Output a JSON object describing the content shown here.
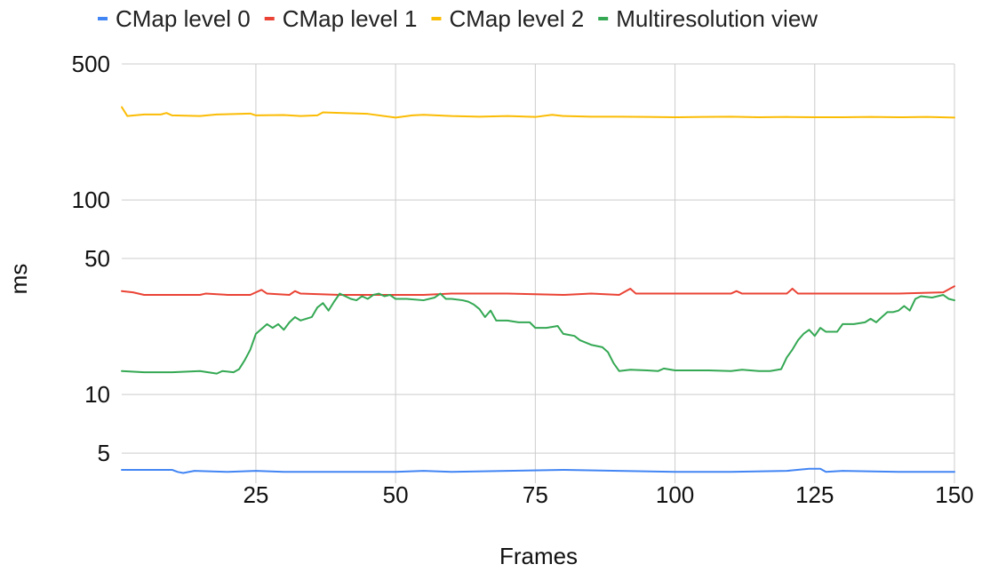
{
  "chart_data": {
    "type": "line",
    "title": "",
    "xlabel": "Frames",
    "ylabel": "ms",
    "x_range": [
      1,
      150
    ],
    "x_ticks": [
      25,
      50,
      75,
      100,
      125,
      150
    ],
    "x_tick_labels": [
      "25",
      "50",
      "75",
      "100",
      "125",
      "150"
    ],
    "y_scale": "log",
    "y_range": [
      3.5,
      500
    ],
    "y_ticks": [
      5,
      10,
      50,
      100,
      500
    ],
    "y_tick_labels": [
      "5",
      "10",
      "50",
      "100",
      "500"
    ],
    "grid": true,
    "legend_position": "top",
    "series": [
      {
        "name": "CMap level 0",
        "color": "#4285f4",
        "points": [
          [
            1,
            4.1
          ],
          [
            5,
            4.1
          ],
          [
            10,
            4.1
          ],
          [
            11,
            4.0
          ],
          [
            12,
            3.95
          ],
          [
            14,
            4.05
          ],
          [
            20,
            4.0
          ],
          [
            25,
            4.05
          ],
          [
            30,
            4.0
          ],
          [
            40,
            4.0
          ],
          [
            50,
            4.0
          ],
          [
            55,
            4.05
          ],
          [
            60,
            4.0
          ],
          [
            70,
            4.05
          ],
          [
            80,
            4.1
          ],
          [
            90,
            4.05
          ],
          [
            100,
            4.0
          ],
          [
            110,
            4.0
          ],
          [
            120,
            4.05
          ],
          [
            124,
            4.15
          ],
          [
            126,
            4.15
          ],
          [
            127,
            4.0
          ],
          [
            130,
            4.05
          ],
          [
            140,
            4.0
          ],
          [
            150,
            4.0
          ]
        ]
      },
      {
        "name": "CMap level 1",
        "color": "#ea4335",
        "points": [
          [
            1,
            34
          ],
          [
            3,
            33.5
          ],
          [
            5,
            32.5
          ],
          [
            10,
            32.5
          ],
          [
            15,
            32.5
          ],
          [
            16,
            33
          ],
          [
            20,
            32.5
          ],
          [
            24,
            32.5
          ],
          [
            25,
            33.5
          ],
          [
            26,
            34.5
          ],
          [
            27,
            33
          ],
          [
            31,
            32.5
          ],
          [
            32,
            34
          ],
          [
            33,
            33
          ],
          [
            40,
            32.5
          ],
          [
            50,
            32.5
          ],
          [
            55,
            32.5
          ],
          [
            60,
            33
          ],
          [
            70,
            33
          ],
          [
            80,
            32.5
          ],
          [
            85,
            33
          ],
          [
            90,
            32.5
          ],
          [
            92,
            35
          ],
          [
            93,
            33
          ],
          [
            100,
            33
          ],
          [
            110,
            33
          ],
          [
            111,
            34
          ],
          [
            112,
            33
          ],
          [
            120,
            33
          ],
          [
            121,
            35
          ],
          [
            122,
            33
          ],
          [
            130,
            33
          ],
          [
            140,
            33
          ],
          [
            148,
            33.5
          ],
          [
            150,
            36
          ]
        ]
      },
      {
        "name": "CMap level 2",
        "color": "#fbbc04",
        "points": [
          [
            1,
            300
          ],
          [
            2,
            270
          ],
          [
            5,
            275
          ],
          [
            8,
            275
          ],
          [
            9,
            280
          ],
          [
            10,
            272
          ],
          [
            15,
            270
          ],
          [
            18,
            275
          ],
          [
            24,
            278
          ],
          [
            25,
            272
          ],
          [
            30,
            273
          ],
          [
            33,
            270
          ],
          [
            36,
            272
          ],
          [
            37,
            282
          ],
          [
            40,
            280
          ],
          [
            45,
            277
          ],
          [
            50,
            265
          ],
          [
            53,
            272
          ],
          [
            55,
            274
          ],
          [
            60,
            270
          ],
          [
            65,
            268
          ],
          [
            70,
            270
          ],
          [
            75,
            267
          ],
          [
            78,
            274
          ],
          [
            80,
            270
          ],
          [
            85,
            268
          ],
          [
            90,
            268
          ],
          [
            95,
            267
          ],
          [
            100,
            266
          ],
          [
            105,
            267
          ],
          [
            110,
            268
          ],
          [
            115,
            266
          ],
          [
            120,
            267
          ],
          [
            125,
            266
          ],
          [
            130,
            266
          ],
          [
            135,
            267
          ],
          [
            140,
            266
          ],
          [
            145,
            267
          ],
          [
            150,
            265
          ]
        ]
      },
      {
        "name": "Multiresolution view",
        "color": "#34a853",
        "points": [
          [
            1,
            13.2
          ],
          [
            5,
            13
          ],
          [
            8,
            13
          ],
          [
            10,
            13
          ],
          [
            15,
            13.2
          ],
          [
            18,
            12.8
          ],
          [
            19,
            13.2
          ],
          [
            21,
            13
          ],
          [
            22,
            13.5
          ],
          [
            23,
            15
          ],
          [
            24,
            17
          ],
          [
            25,
            20.5
          ],
          [
            27,
            23
          ],
          [
            28,
            22
          ],
          [
            29,
            23
          ],
          [
            30,
            21.5
          ],
          [
            31,
            23.5
          ],
          [
            32,
            25
          ],
          [
            33,
            24
          ],
          [
            35,
            25
          ],
          [
            36,
            28
          ],
          [
            37,
            29.5
          ],
          [
            38,
            27
          ],
          [
            39,
            30
          ],
          [
            40,
            33
          ],
          [
            41,
            32
          ],
          [
            42,
            31
          ],
          [
            43,
            30.5
          ],
          [
            44,
            32
          ],
          [
            45,
            31
          ],
          [
            46,
            32.5
          ],
          [
            47,
            33
          ],
          [
            48,
            32
          ],
          [
            49,
            32.5
          ],
          [
            50,
            31
          ],
          [
            52,
            31
          ],
          [
            55,
            30.5
          ],
          [
            57,
            31.5
          ],
          [
            58,
            33
          ],
          [
            59,
            31
          ],
          [
            60,
            31
          ],
          [
            62,
            30.5
          ],
          [
            63,
            30
          ],
          [
            64,
            29
          ],
          [
            65,
            27.5
          ],
          [
            66,
            25
          ],
          [
            67,
            27
          ],
          [
            68,
            24
          ],
          [
            70,
            24
          ],
          [
            72,
            23.5
          ],
          [
            74,
            23.5
          ],
          [
            75,
            22
          ],
          [
            77,
            22
          ],
          [
            79,
            22.5
          ],
          [
            80,
            20.5
          ],
          [
            82,
            20
          ],
          [
            83,
            19
          ],
          [
            85,
            18
          ],
          [
            87,
            17.5
          ],
          [
            88,
            16.5
          ],
          [
            89,
            14.5
          ],
          [
            90,
            13.2
          ],
          [
            92,
            13.4
          ],
          [
            95,
            13.3
          ],
          [
            97,
            13.2
          ],
          [
            98,
            13.6
          ],
          [
            100,
            13.3
          ],
          [
            103,
            13.3
          ],
          [
            106,
            13.3
          ],
          [
            110,
            13.2
          ],
          [
            112,
            13.4
          ],
          [
            115,
            13.2
          ],
          [
            117,
            13.2
          ],
          [
            119,
            13.5
          ],
          [
            120,
            15.5
          ],
          [
            121,
            17
          ],
          [
            122,
            19
          ],
          [
            123,
            20.5
          ],
          [
            124,
            21.5
          ],
          [
            125,
            20
          ],
          [
            126,
            22
          ],
          [
            127,
            21
          ],
          [
            129,
            21
          ],
          [
            130,
            23
          ],
          [
            132,
            23
          ],
          [
            134,
            23.5
          ],
          [
            135,
            24.5
          ],
          [
            136,
            23.5
          ],
          [
            137,
            25
          ],
          [
            138,
            26.5
          ],
          [
            139,
            26.5
          ],
          [
            140,
            27
          ],
          [
            141,
            28.5
          ],
          [
            142,
            27
          ],
          [
            143,
            31
          ],
          [
            144,
            32
          ],
          [
            146,
            31.5
          ],
          [
            148,
            32.5
          ],
          [
            149,
            31
          ],
          [
            150,
            30.5
          ]
        ]
      }
    ]
  }
}
